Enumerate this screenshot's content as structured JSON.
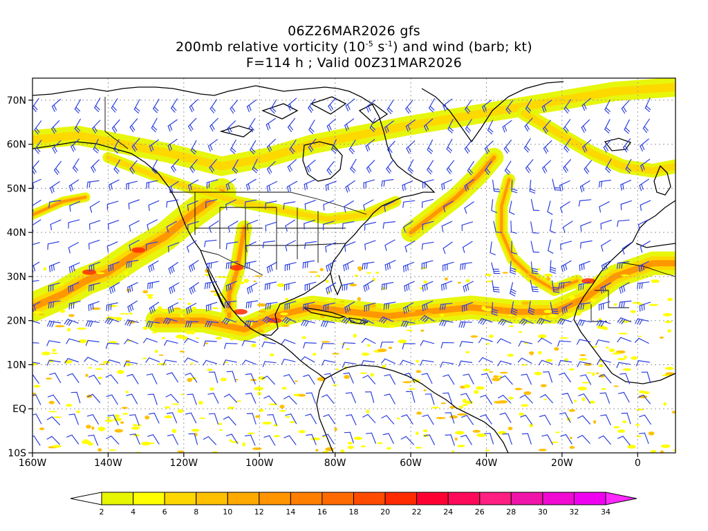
{
  "header": {
    "line1": "06Z26MAR2026 gfs",
    "line2_pre": "200mb relative vorticity (10",
    "line2_exp1": "-5",
    "line2_mid": " s",
    "line2_exp2": "-1",
    "line2_post": ") and wind (barb; kt)",
    "line3": "F=114 h ; Valid 00Z31MAR2026"
  },
  "map": {
    "projection": "cylindrical",
    "lon_range": [
      -160,
      10
    ],
    "lat_range": [
      -10,
      75
    ],
    "lon_ticks": [
      {
        "value": -160,
        "label": "160W"
      },
      {
        "value": -140,
        "label": "140W"
      },
      {
        "value": -120,
        "label": "120W"
      },
      {
        "value": -100,
        "label": "100W"
      },
      {
        "value": -80,
        "label": "80W"
      },
      {
        "value": -60,
        "label": "60W"
      },
      {
        "value": -40,
        "label": "40W"
      },
      {
        "value": -20,
        "label": "20W"
      },
      {
        "value": 0,
        "label": "0"
      }
    ],
    "lat_ticks": [
      {
        "value": -10,
        "label": "10S"
      },
      {
        "value": 0,
        "label": "EQ"
      },
      {
        "value": 10,
        "label": "10N"
      },
      {
        "value": 20,
        "label": "20N"
      },
      {
        "value": 30,
        "label": "30N"
      },
      {
        "value": 40,
        "label": "40N"
      },
      {
        "value": 50,
        "label": "50N"
      },
      {
        "value": 60,
        "label": "60N"
      },
      {
        "value": 70,
        "label": "70N"
      }
    ],
    "grid_lines": "dotted",
    "barb_color": "#2b3fe0",
    "coast_color": "#000000"
  },
  "colorbar": {
    "levels": [
      "2",
      "4",
      "6",
      "8",
      "10",
      "12",
      "14",
      "16",
      "18",
      "20",
      "22",
      "24",
      "26",
      "28",
      "30",
      "32",
      "34"
    ],
    "colors": [
      "#e6f500",
      "#ffff00",
      "#ffd700",
      "#ffc000",
      "#ffaa00",
      "#ff9400",
      "#ff7e00",
      "#ff6a00",
      "#ff4b00",
      "#ff2a00",
      "#ff0032",
      "#ff0a5a",
      "#ff1e82",
      "#f014aa",
      "#f00ad2",
      "#f000f0"
    ],
    "under_color": "#ffffff",
    "over_color": "#ff28ff"
  }
}
